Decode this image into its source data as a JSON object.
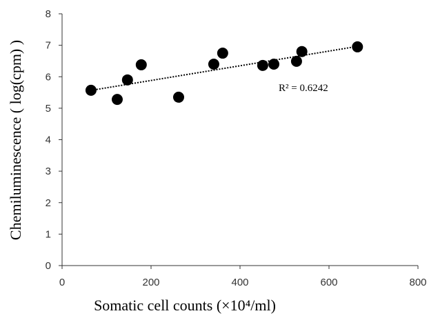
{
  "chart_data": {
    "type": "scatter",
    "x_label": "Somatic cell counts (×10⁴/ml)",
    "y_label": "Chemiluminescence ( log(cpm) )",
    "annotation": "R² = 0.6242",
    "trendline": "linear",
    "color": "#000000",
    "x": [
      65,
      124,
      147,
      178,
      262,
      341,
      361,
      451,
      476,
      527,
      539,
      664
    ],
    "values": [
      5.57,
      5.28,
      5.9,
      6.38,
      5.35,
      6.4,
      6.75,
      6.36,
      6.4,
      6.49,
      6.8,
      6.95
    ],
    "xlim": [
      0,
      800
    ],
    "xticks": [
      0,
      200,
      400,
      600,
      800
    ],
    "ylim": [
      0,
      8
    ],
    "yticks": [
      0,
      1,
      2,
      3,
      4,
      5,
      6,
      7,
      8
    ],
    "grid": false
  }
}
